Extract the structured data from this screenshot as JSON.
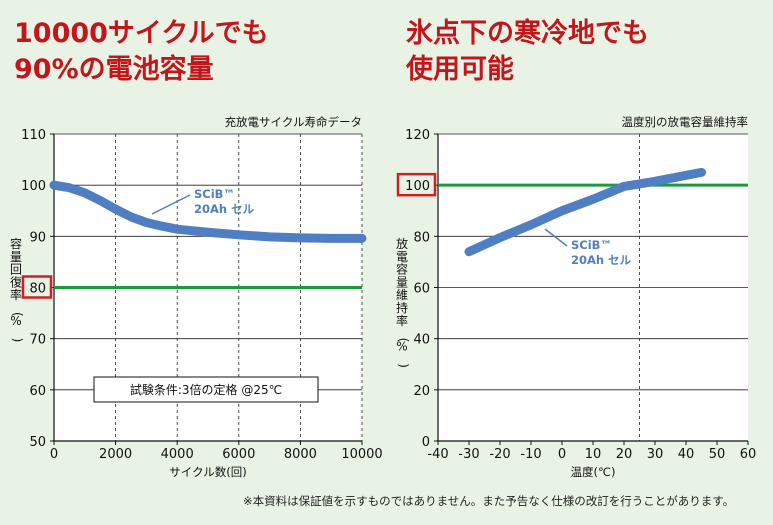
{
  "headlines": {
    "left": [
      "10000サイクルでも",
      "90%の電池容量"
    ],
    "right": [
      "氷点下の寒冷地でも",
      "使用可能"
    ]
  },
  "footnote": "※本資料は保証値を示すものではありません。また予告なく仕様の改訂を行うことがあります。",
  "colors": {
    "headline": "#c3161c",
    "series": "#4f7fc2",
    "reference_line": "#1a9a3a",
    "highlight_box": "#d01f25",
    "background": "#e9f3e5"
  },
  "chart_data": [
    {
      "type": "line",
      "title": "充放電サイクル寿命データ",
      "xlabel": "サイクル数(回)",
      "ylabel": "容量回復率(%)",
      "xlim": [
        0,
        10000
      ],
      "ylim": [
        50,
        110
      ],
      "x_ticks": [
        0,
        2000,
        4000,
        6000,
        8000,
        10000
      ],
      "y_ticks": [
        50,
        60,
        70,
        80,
        90,
        100,
        110
      ],
      "highlighted_tick": 80,
      "grid": "horizontal solid at 10-unit steps, vertical dashed at 2000-unit steps",
      "series": [
        {
          "name": "SCiB™ 20Ah セル",
          "x": [
            0,
            500,
            1000,
            1500,
            2000,
            2500,
            3000,
            3500,
            4000,
            5000,
            6000,
            7000,
            8000,
            9000,
            10000
          ],
          "y": [
            100,
            99.5,
            98.5,
            97,
            95.3,
            93.8,
            92.7,
            92,
            91.4,
            90.8,
            90.3,
            89.9,
            89.7,
            89.6,
            89.6
          ]
        }
      ],
      "reference_lines": [
        {
          "y": 80
        }
      ],
      "annotations": [
        {
          "text": "試験条件:3倍の定格 @25℃"
        }
      ]
    },
    {
      "type": "line",
      "title": "温度別の放電容量維持率",
      "xlabel": "温度(℃)",
      "ylabel": "放電容量維持率(%)",
      "xlim": [
        -40,
        60
      ],
      "ylim": [
        0,
        120
      ],
      "x_ticks": [
        -40,
        -30,
        -20,
        -10,
        0,
        10,
        20,
        30,
        40,
        50,
        60
      ],
      "y_ticks": [
        0,
        20,
        40,
        60,
        80,
        100,
        120
      ],
      "highlighted_tick": 100,
      "grid": "horizontal solid at 20-unit steps, vertical dashed at 25",
      "series": [
        {
          "name": "SCiB™ 20Ah セル",
          "x": [
            -30,
            -20,
            -10,
            0,
            10,
            20,
            30,
            45
          ],
          "y": [
            74,
            79.5,
            84.5,
            90,
            94.5,
            99.5,
            101.5,
            105
          ]
        }
      ],
      "reference_lines": [
        {
          "y": 100
        }
      ],
      "annotations": []
    }
  ]
}
